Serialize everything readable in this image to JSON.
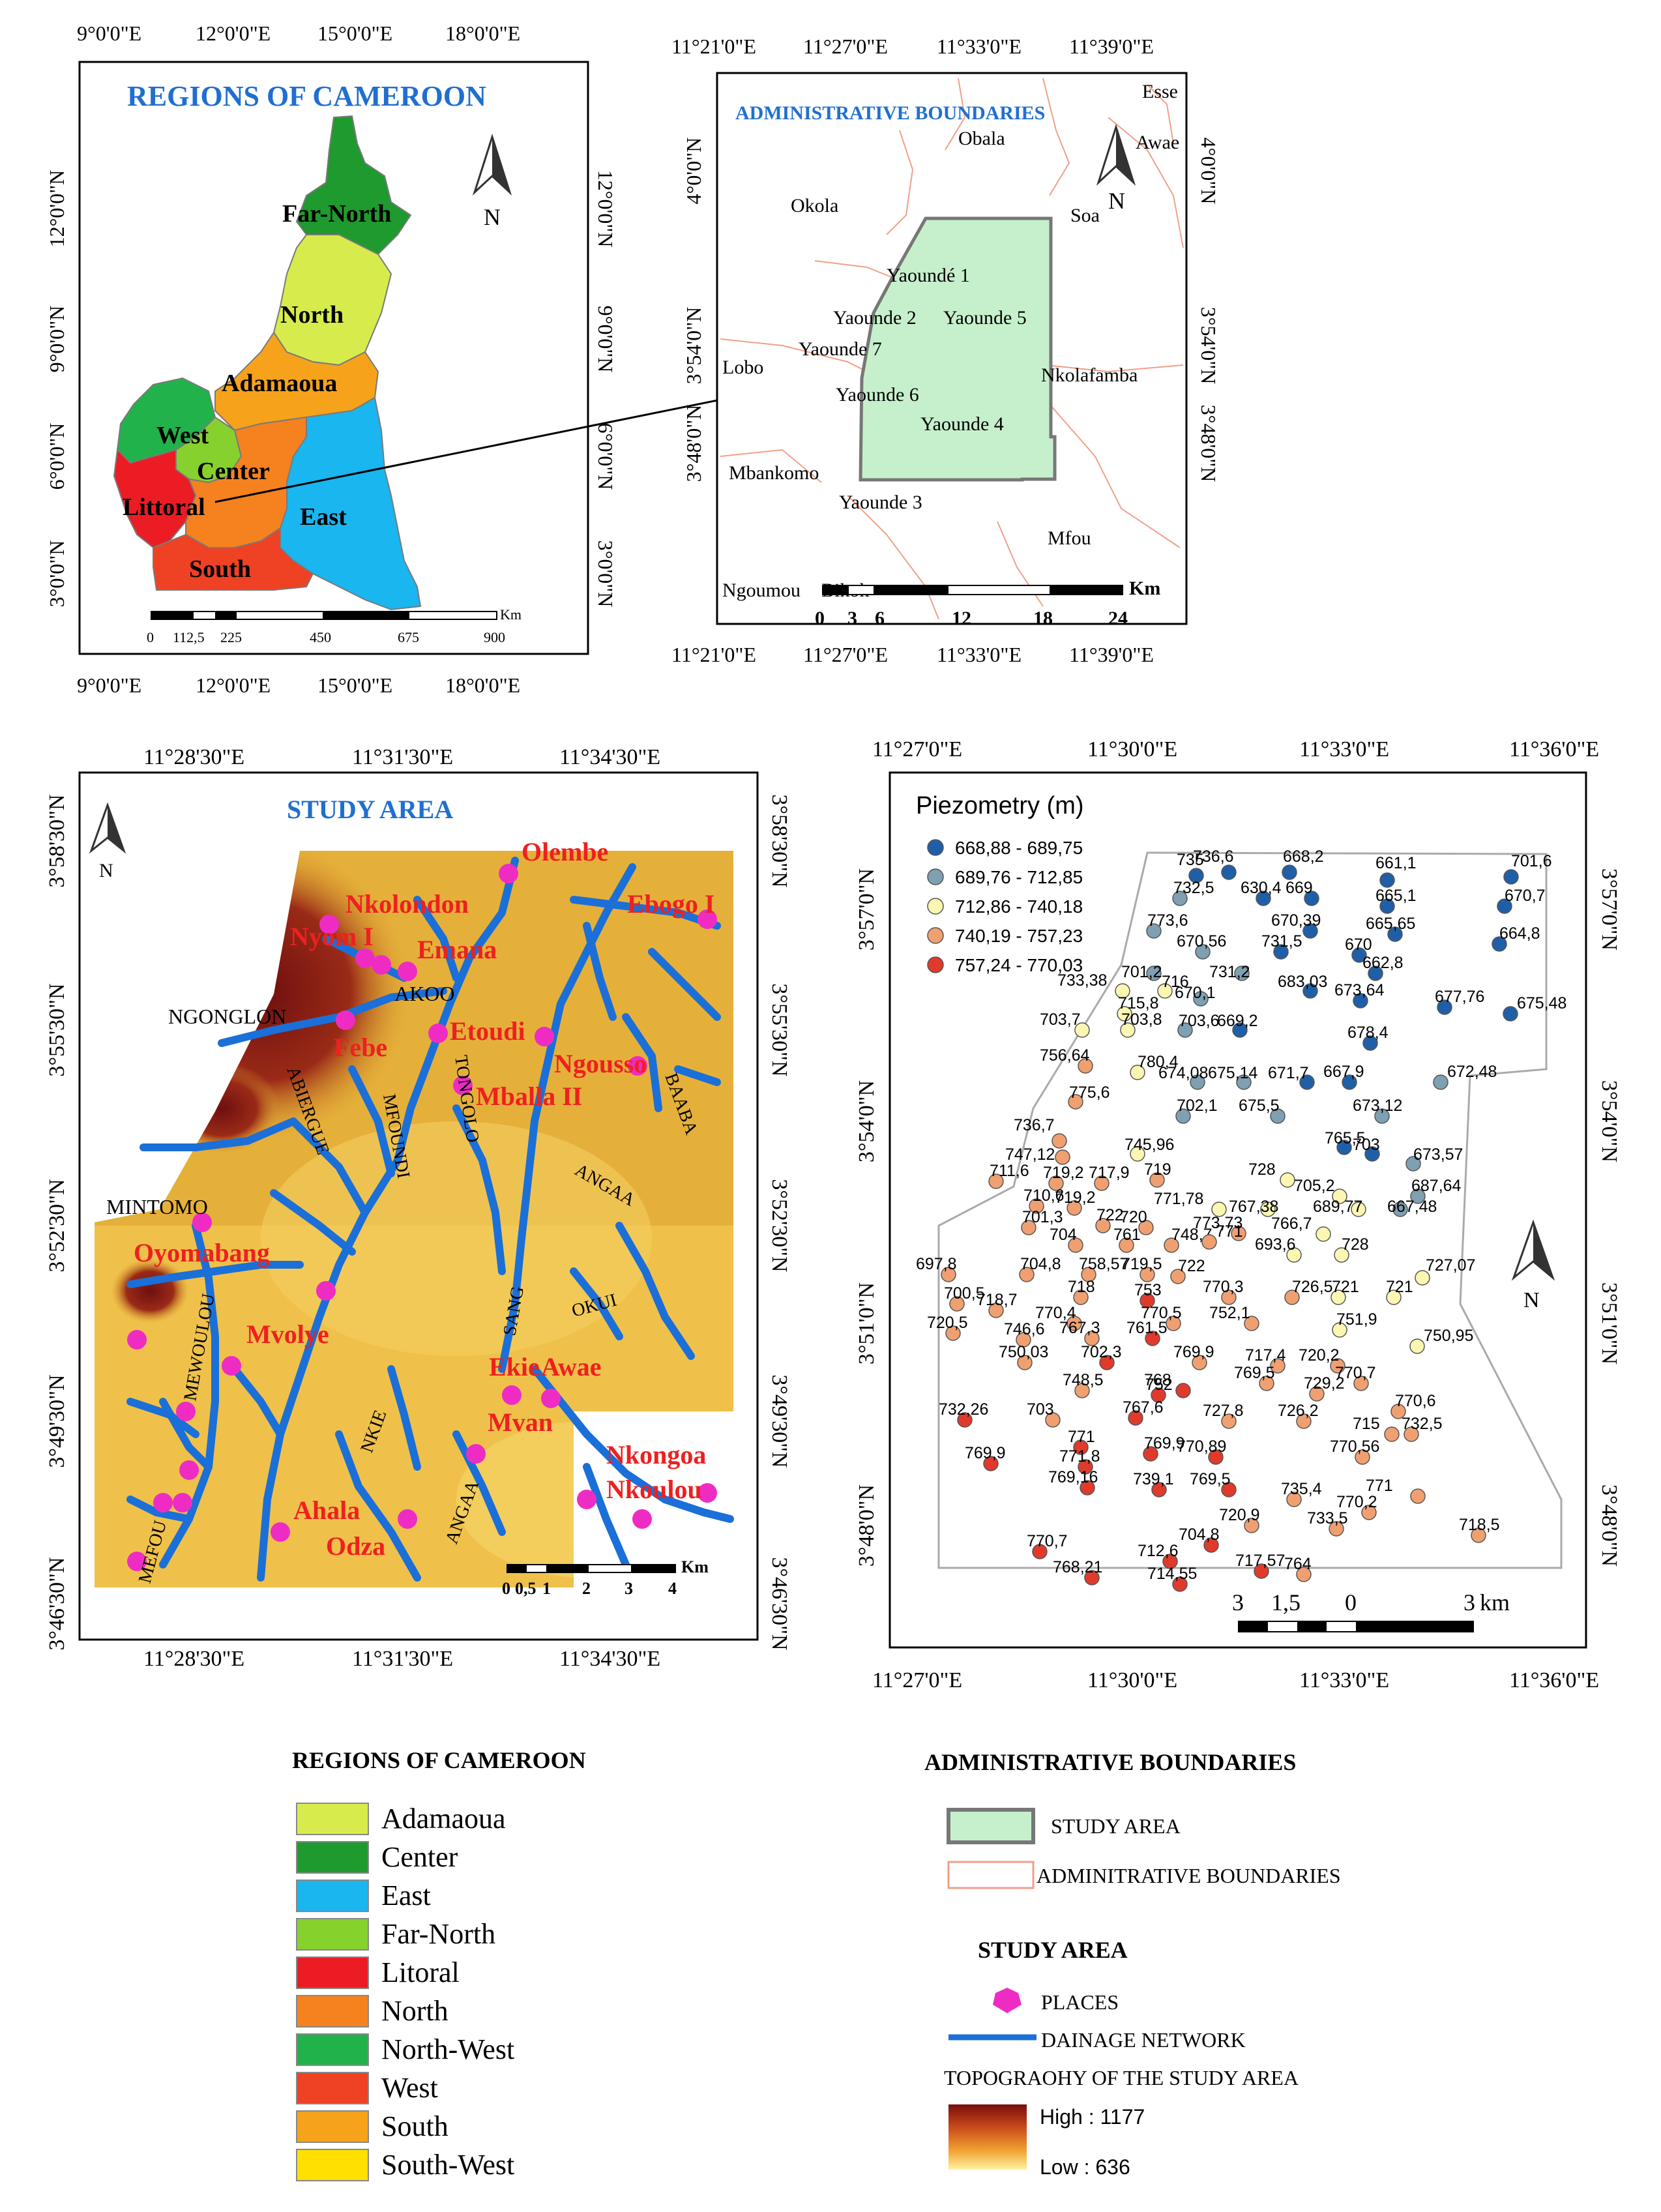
{
  "panel_regions": {
    "title": "REGIONS OF CAMEROON",
    "coords_top": [
      "9°0'0\"E",
      "12°0'0\"E",
      "15°0'0\"E",
      "18°0'0\"E"
    ],
    "coords_bottom": [
      "9°0'0\"E",
      "12°0'0\"E",
      "15°0'0\"E",
      "18°0'0\"E"
    ],
    "coords_left": [
      "12°0'0\"N",
      "9°0'0\"N",
      "6°0'0\"N",
      "3°0'0\"N"
    ],
    "coords_right": [
      "12°0'0\"N",
      "9°0'0\"N",
      "6°0'0\"N",
      "3°0'0\"N"
    ],
    "region_labels": [
      "Far-North",
      "North",
      "Adamaoua",
      "West",
      "Center",
      "Littoral",
      "East",
      "South"
    ],
    "scale_unit": "Km",
    "scale_ticks": [
      "0",
      "112,5",
      "225",
      "450",
      "675",
      "900"
    ],
    "north": "N"
  },
  "panel_admin": {
    "title": "ADMINISTRATIVE BOUNDARIES",
    "coords_top": [
      "11°21'0\"E",
      "11°27'0\"E",
      "11°33'0\"E",
      "11°39'0\"E"
    ],
    "coords_bottom": [
      "11°21'0\"E",
      "11°27'0\"E",
      "11°33'0\"E",
      "11°39'0\"E"
    ],
    "coords_left": [
      "4°0'0\"N",
      "3°54'0\"N",
      "3°48'0\"N"
    ],
    "coords_right": [
      "4°0'0\"N",
      "3°54'0\"N",
      "3°48'0\"N"
    ],
    "places": [
      "Esse",
      "Obala",
      "Awae",
      "Okola",
      "Soa",
      "Yaoundé 1",
      "Yaounde 2",
      "Yaounde 5",
      "Yaounde 7",
      "Lobo",
      "Yaounde 6",
      "Nkolafamba",
      "Yaounde 4",
      "Mbankomo",
      "Yaounde 3",
      "Mfou",
      "Ngoumou",
      "Bikok"
    ],
    "scale_unit": "Km",
    "scale_ticks": [
      "0",
      "3",
      "6",
      "12",
      "18",
      "24"
    ],
    "north": "N"
  },
  "panel_study": {
    "title": "STUDY AREA",
    "coords_top": [
      "11°28'30\"E",
      "11°31'30\"E",
      "11°34'30\"E"
    ],
    "coords_bottom": [
      "11°28'30\"E",
      "11°31'30\"E",
      "11°34'30\"E"
    ],
    "coords_left": [
      "3°58'30\"N",
      "3°55'30\"N",
      "3°52'30\"N",
      "3°49'30\"N",
      "3°46'30\"N"
    ],
    "coords_right": [
      "3°58'30\"N",
      "3°55'30\"N",
      "3°52'30\"N",
      "3°49'30\"N",
      "3°46'30\"N"
    ],
    "places_red": [
      "Olembe",
      "Nkolondon",
      "Ebogo I",
      "Nyom I",
      "Emana",
      "Febe",
      "Etoudi",
      "Ngousso",
      "Mballa II",
      "Oyomabang",
      "Mvolye",
      "Ekie",
      "Awae",
      "Mvan",
      "Nkongoa",
      "Nkoulou",
      "Ahala",
      "Odza"
    ],
    "places_black": [
      "NGONGLON",
      "AKOO",
      "MINTOMO"
    ],
    "rivers": [
      "ABIERGUE",
      "MFOUNDI",
      "TONGOLO",
      "BAABA",
      "ANGAA",
      "SANG",
      "OKUI",
      "MEWOULOU",
      "NKIE",
      "ANGAA",
      "MEFOU"
    ],
    "scale_unit": "Km",
    "scale_ticks": [
      "0",
      "0,5",
      "1",
      "2",
      "3",
      "4"
    ],
    "north": "N"
  },
  "panel_piezo": {
    "title": "Piezometry (m)",
    "coords_top": [
      "11°27'0\"E",
      "11°30'0\"E",
      "11°33'0\"E",
      "11°36'0\"E"
    ],
    "coords_bottom": [
      "11°27'0\"E",
      "11°30'0\"E",
      "11°33'0\"E",
      "11°36'0\"E"
    ],
    "coords_left": [
      "3°57'0\"N",
      "3°54'0\"N",
      "3°51'0\"N",
      "3°48'0\"N"
    ],
    "coords_right": [
      "3°57'0\"N",
      "3°54'0\"N",
      "3°51'0\"N",
      "3°48'0\"N"
    ],
    "classes": [
      {
        "label": "668,88 - 689,75",
        "color": "#1f5fa8"
      },
      {
        "label": "689,76 - 712,85",
        "color": "#7f9fb2"
      },
      {
        "label": "712,86 - 740,18",
        "color": "#fbf7b3"
      },
      {
        "label": "740,19 - 757,23",
        "color": "#f0a070"
      },
      {
        "label": "757,24 - 770,03",
        "color": "#e03a2c"
      }
    ],
    "scale_unit": "km",
    "scale_ticks": [
      "3",
      "1,5",
      "0",
      "3"
    ],
    "north": "N",
    "points": [
      {
        "v": "736,6",
        "c": 0
      },
      {
        "v": "735",
        "c": 0
      },
      {
        "v": "668,2",
        "c": 0
      },
      {
        "v": "661,1",
        "c": 0
      },
      {
        "v": "701,6",
        "c": 0
      },
      {
        "v": "732,5",
        "c": 1
      },
      {
        "v": "630,4",
        "c": 0
      },
      {
        "v": "669",
        "c": 0
      },
      {
        "v": "665,1",
        "c": 0
      },
      {
        "v": "670,7",
        "c": 0
      },
      {
        "v": "773,6",
        "c": 1
      },
      {
        "v": "670,39",
        "c": 0
      },
      {
        "v": "665,65",
        "c": 0
      },
      {
        "v": "664,8",
        "c": 0
      },
      {
        "v": "670,56",
        "c": 1
      },
      {
        "v": "731,5",
        "c": 0
      },
      {
        "v": "670",
        "c": 0
      },
      {
        "v": "701,2",
        "c": 1
      },
      {
        "v": "662,8",
        "c": 0
      },
      {
        "v": "731,2",
        "c": 1
      },
      {
        "v": "683,03",
        "c": 0
      },
      {
        "v": "673,64",
        "c": 0
      },
      {
        "v": "677,76",
        "c": 0
      },
      {
        "v": "733,38",
        "c": 2
      },
      {
        "v": "716",
        "c": 2
      },
      {
        "v": "670,1",
        "c": 1
      },
      {
        "v": "675,48",
        "c": 0
      },
      {
        "v": "715,8",
        "c": 2
      },
      {
        "v": "703,7",
        "c": 2
      },
      {
        "v": "703,8",
        "c": 2
      },
      {
        "v": "703,6",
        "c": 1
      },
      {
        "v": "669,2",
        "c": 0
      },
      {
        "v": "678,4",
        "c": 0
      },
      {
        "v": "756,64",
        "c": 3
      },
      {
        "v": "780,4",
        "c": 2
      },
      {
        "v": "674,08",
        "c": 1
      },
      {
        "v": "675,14",
        "c": 1
      },
      {
        "v": "671,7",
        "c": 0
      },
      {
        "v": "667,9",
        "c": 0
      },
      {
        "v": "672,48",
        "c": 1
      },
      {
        "v": "775,6",
        "c": 3
      },
      {
        "v": "702,1",
        "c": 1
      },
      {
        "v": "675,5",
        "c": 1
      },
      {
        "v": "673,12",
        "c": 1
      },
      {
        "v": "736,7",
        "c": 3
      },
      {
        "v": "747,12",
        "c": 3
      },
      {
        "v": "745,96",
        "c": 2
      },
      {
        "v": "765,5",
        "c": 0
      },
      {
        "v": "703",
        "c": 0
      },
      {
        "v": "673,57",
        "c": 1
      },
      {
        "v": "711,6",
        "c": 3
      },
      {
        "v": "719,2",
        "c": 3
      },
      {
        "v": "717,9",
        "c": 3
      },
      {
        "v": "719",
        "c": 3
      },
      {
        "v": "728",
        "c": 2
      },
      {
        "v": "705,2",
        "c": 2
      },
      {
        "v": "687,64",
        "c": 1
      },
      {
        "v": "710,6",
        "c": 3
      },
      {
        "v": "719,2",
        "c": 3
      },
      {
        "v": "771,78",
        "c": 2
      },
      {
        "v": "767,38",
        "c": 2
      },
      {
        "v": "689,77",
        "c": 2
      },
      {
        "v": "667,48",
        "c": 1
      },
      {
        "v": "701,3",
        "c": 3
      },
      {
        "v": "722",
        "c": 3
      },
      {
        "v": "720",
        "c": 3
      },
      {
        "v": "773,73",
        "c": 3
      },
      {
        "v": "766,7",
        "c": 2
      },
      {
        "v": "704",
        "c": 3
      },
      {
        "v": "761",
        "c": 3
      },
      {
        "v": "748,7",
        "c": 3
      },
      {
        "v": "771",
        "c": 3
      },
      {
        "v": "693,6",
        "c": 2
      },
      {
        "v": "728",
        "c": 2
      },
      {
        "v": "697,8",
        "c": 3
      },
      {
        "v": "704,8",
        "c": 3
      },
      {
        "v": "758,57",
        "c": 3
      },
      {
        "v": "719,5",
        "c": 3
      },
      {
        "v": "722",
        "c": 3
      },
      {
        "v": "727,07",
        "c": 2
      },
      {
        "v": "718",
        "c": 3
      },
      {
        "v": "753",
        "c": 4
      },
      {
        "v": "770,3",
        "c": 3
      },
      {
        "v": "726,5",
        "c": 3
      },
      {
        "v": "721",
        "c": 2
      },
      {
        "v": "721",
        "c": 2
      },
      {
        "v": "700,5",
        "c": 3
      },
      {
        "v": "718,7",
        "c": 3
      },
      {
        "v": "770,4",
        "c": 3
      },
      {
        "v": "770,5",
        "c": 3
      },
      {
        "v": "752,1",
        "c": 3
      },
      {
        "v": "751,9",
        "c": 2
      },
      {
        "v": "720,5",
        "c": 3
      },
      {
        "v": "746,6",
        "c": 3
      },
      {
        "v": "767,3",
        "c": 3
      },
      {
        "v": "761,5",
        "c": 4
      },
      {
        "v": "750,95",
        "c": 2
      },
      {
        "v": "750,03",
        "c": 3
      },
      {
        "v": "702,3",
        "c": 4
      },
      {
        "v": "769,9",
        "c": 3
      },
      {
        "v": "717,4",
        "c": 3
      },
      {
        "v": "720,2",
        "c": 3
      },
      {
        "v": "769,5",
        "c": 3
      },
      {
        "v": "770,7",
        "c": 3
      },
      {
        "v": "748,5",
        "c": 3
      },
      {
        "v": "752",
        "c": 4
      },
      {
        "v": "768",
        "c": 4
      },
      {
        "v": "729,2",
        "c": 3
      },
      {
        "v": "732,26",
        "c": 4
      },
      {
        "v": "703",
        "c": 3
      },
      {
        "v": "767,6",
        "c": 4
      },
      {
        "v": "770,6",
        "c": 3
      },
      {
        "v": "727,8",
        "c": 3
      },
      {
        "v": "726,2",
        "c": 3
      },
      {
        "v": "715",
        "c": 3
      },
      {
        "v": "732,5",
        "c": 3
      },
      {
        "v": "771",
        "c": 4
      },
      {
        "v": "769,9",
        "c": 4
      },
      {
        "v": "770,89",
        "c": 4
      },
      {
        "v": "770,56",
        "c": 3
      },
      {
        "v": "769,9",
        "c": 4
      },
      {
        "v": "771,8",
        "c": 4
      },
      {
        "v": "769,16",
        "c": 4
      },
      {
        "v": "739,1",
        "c": 4
      },
      {
        "v": "769,5",
        "c": 4
      },
      {
        "v": "735,4",
        "c": 3
      },
      {
        "v": "771",
        "c": 3
      },
      {
        "v": "770,2",
        "c": 3
      },
      {
        "v": "720,9",
        "c": 3
      },
      {
        "v": "733,5",
        "c": 3
      },
      {
        "v": "718,5",
        "c": 3
      },
      {
        "v": "770,7",
        "c": 4
      },
      {
        "v": "704,8",
        "c": 4
      },
      {
        "v": "712,6",
        "c": 4
      },
      {
        "v": "717,57",
        "c": 4
      },
      {
        "v": "764",
        "c": 3
      },
      {
        "v": "768,21",
        "c": 4
      },
      {
        "v": "714,55",
        "c": 4
      }
    ]
  },
  "legend_regions": {
    "title": "REGIONS OF CAMEROON",
    "items": [
      {
        "label": "Adamaoua",
        "color": "#d7ec4c"
      },
      {
        "label": "Center",
        "color": "#1f9a2e"
      },
      {
        "label": "East",
        "color": "#19b6f0"
      },
      {
        "label": "Far-North",
        "color": "#86d12e"
      },
      {
        "label": "Litoral",
        "color": "#ec1c24"
      },
      {
        "label": "North",
        "color": "#f5821f"
      },
      {
        "label": "North-West",
        "color": "#22b24c"
      },
      {
        "label": "West",
        "color": "#ef4123"
      },
      {
        "label": "South",
        "color": "#f7a21b"
      },
      {
        "label": "South-West",
        "color": "#ffe000"
      }
    ]
  },
  "legend_admin": {
    "title": "ADMINISTRATIVE BOUNDARIES",
    "study_area": "STUDY AREA",
    "boundaries": "ADMINITRATIVE BOUNDARIES"
  },
  "legend_study": {
    "title": "STUDY AREA",
    "places": "PLACES",
    "drainage": "DAINAGE NETWORK",
    "topo_title": "TOPOGRAOHY OF THE STUDY AREA",
    "high": "High : 1177",
    "low": "Low : 636"
  }
}
